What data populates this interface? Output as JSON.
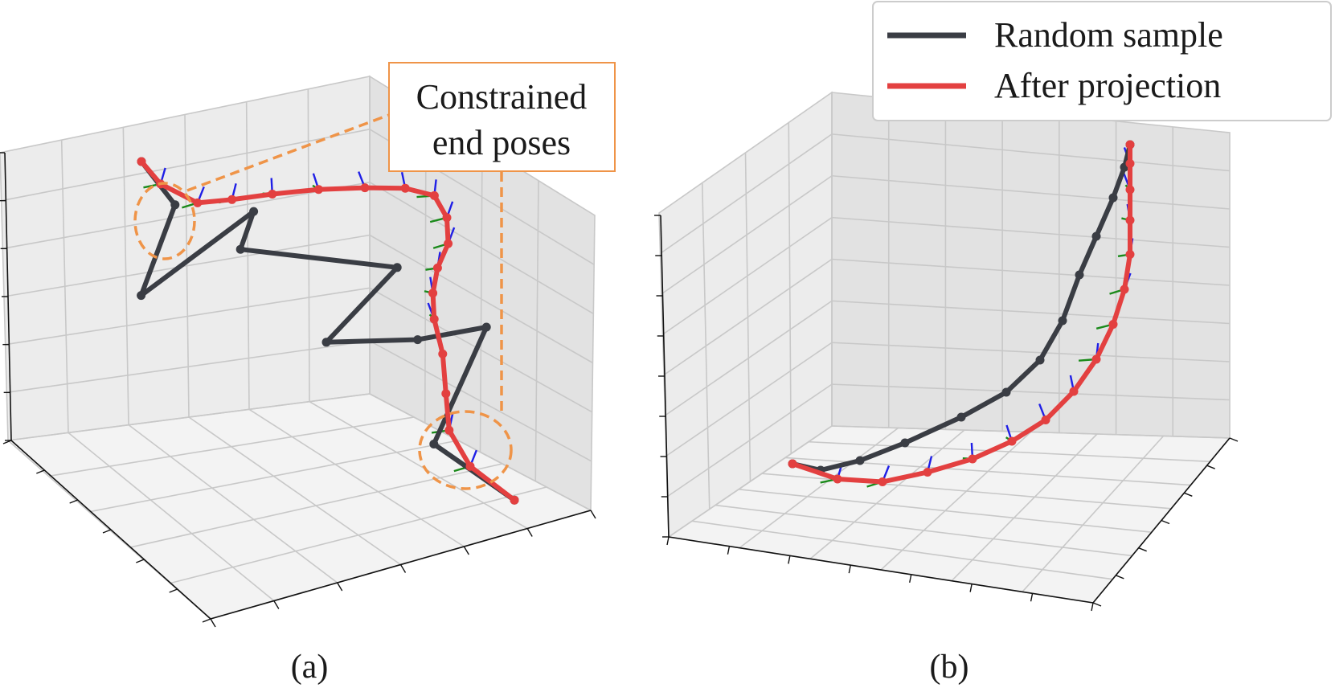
{
  "colors": {
    "random": "#3a3d44",
    "projection": "#e34040",
    "highlight": "#ef9448",
    "axis_green": "#1a8a1a",
    "axis_blue": "#1f1fe6",
    "grid": "#c8c8c8",
    "pane_back": "#ececec",
    "pane_side": "#e2e2e2",
    "pane_floor": "#f3f3f3"
  },
  "legend": {
    "random_label": "Random sample",
    "projection_label": "After projection",
    "placement": "top-right"
  },
  "annotation": {
    "line1": "Constrained",
    "line2": "end poses"
  },
  "chart_data": [
    {
      "type": "line",
      "projection": "3d",
      "label": "(a)",
      "grid": true,
      "series": [
        {
          "name": "Random sample",
          "points": [
            [
              0,
              3,
              8
            ],
            [
              0.5,
              2.4,
              7.2
            ],
            [
              -0.2,
              1.2,
              5.0
            ],
            [
              1.8,
              2.2,
              7.5
            ],
            [
              1.6,
              2.4,
              6.0
            ],
            [
              4.3,
              3.0,
              5.6
            ],
            [
              3.0,
              2.0,
              3.6
            ],
            [
              4.6,
              2.6,
              3.6
            ],
            [
              5.8,
              3.0,
              4.0
            ],
            [
              4.7,
              1.0,
              1.5
            ],
            [
              6.0,
              0.5,
              0.4
            ]
          ]
        },
        {
          "name": "After projection",
          "points": [
            [
              0,
              3,
              8
            ],
            [
              0.3,
              2.8,
              7.5
            ],
            [
              0.9,
              2.6,
              7.2
            ],
            [
              1.5,
              2.8,
              7.3
            ],
            [
              2.2,
              3.0,
              7.5
            ],
            [
              3.0,
              3.2,
              7.7
            ],
            [
              3.8,
              3.4,
              7.8
            ],
            [
              4.5,
              3.6,
              7.8
            ],
            [
              5.0,
              3.7,
              7.6
            ],
            [
              5.2,
              3.6,
              7.0
            ],
            [
              5.2,
              3.4,
              6.3
            ],
            [
              5.0,
              3.2,
              5.6
            ],
            [
              4.9,
              3.0,
              4.9
            ],
            [
              4.9,
              2.8,
              4.2
            ],
            [
              5.0,
              2.4,
              3.4
            ],
            [
              5.0,
              1.9,
              2.5
            ],
            [
              5.0,
              1.4,
              1.7
            ],
            [
              5.3,
              0.9,
              1.0
            ],
            [
              6.0,
              0.5,
              0.4
            ]
          ]
        }
      ]
    },
    {
      "type": "line",
      "projection": "3d",
      "label": "(b)",
      "grid": true,
      "series": [
        {
          "name": "Random sample",
          "points": [
            [
              0,
              0.5,
              1
            ],
            [
              0.5,
              0.6,
              0.8
            ],
            [
              1.2,
              0.9,
              1.0
            ],
            [
              2.0,
              1.3,
              1.4
            ],
            [
              3.0,
              1.8,
              2.0
            ],
            [
              3.8,
              2.2,
              2.6
            ],
            [
              4.4,
              2.6,
              3.4
            ],
            [
              4.8,
              3.0,
              4.4
            ],
            [
              5.1,
              3.3,
              5.6
            ],
            [
              5.4,
              3.6,
              6.6
            ],
            [
              5.7,
              3.9,
              7.6
            ],
            [
              5.9,
              4.1,
              8.4
            ],
            [
              6.0,
              4.2,
              9.0
            ]
          ]
        },
        {
          "name": "After projection",
          "points": [
            [
              0,
              0.5,
              1
            ],
            [
              0.8,
              0.4,
              0.6
            ],
            [
              1.6,
              0.5,
              0.5
            ],
            [
              2.4,
              0.8,
              0.7
            ],
            [
              3.2,
              1.1,
              1.0
            ],
            [
              3.9,
              1.5,
              1.4
            ],
            [
              4.5,
              1.9,
              1.9
            ],
            [
              5.0,
              2.3,
              2.6
            ],
            [
              5.4,
              2.7,
              3.4
            ],
            [
              5.7,
              3.0,
              4.3
            ],
            [
              5.9,
              3.3,
              5.2
            ],
            [
              6.0,
              3.6,
              6.1
            ],
            [
              6.0,
              3.8,
              7.0
            ],
            [
              6.0,
              4.0,
              7.8
            ],
            [
              6.0,
              4.1,
              8.5
            ],
            [
              6.0,
              4.2,
              9.0
            ]
          ]
        }
      ]
    }
  ]
}
